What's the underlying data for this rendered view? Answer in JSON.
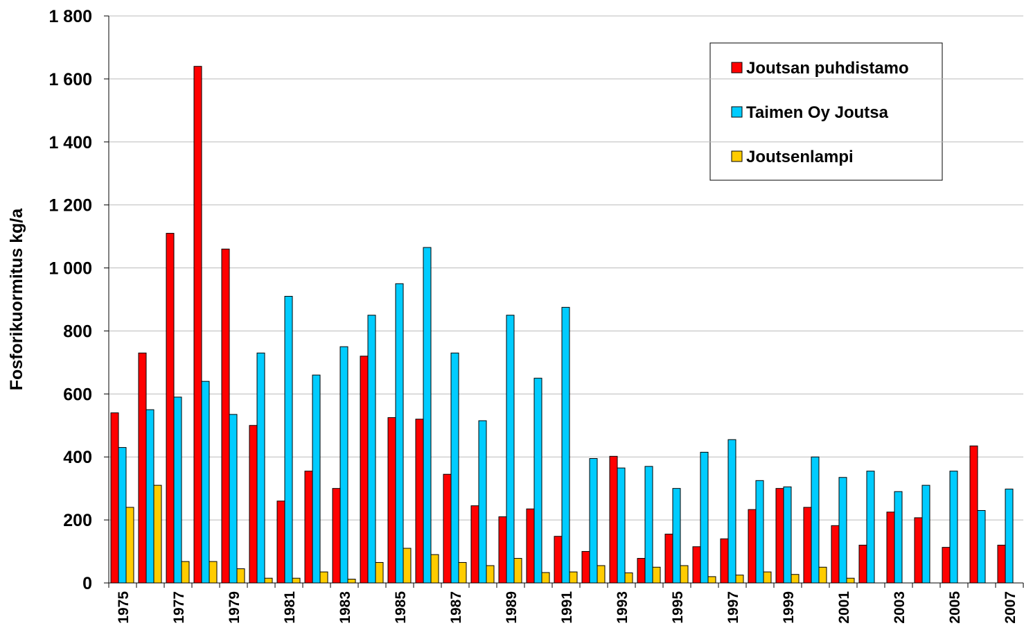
{
  "chart_data": {
    "type": "bar",
    "y_label": "Fosforikuormitus kg/a",
    "categories": [
      "1975",
      null,
      "1977",
      null,
      "1979",
      null,
      "1981",
      null,
      "1983",
      null,
      "1985",
      null,
      "1987",
      null,
      "1989",
      null,
      "1991",
      null,
      "1993",
      null,
      "1995",
      null,
      "1997",
      null,
      "1999",
      null,
      "2001",
      null,
      "2003",
      null,
      "2005",
      null,
      "2007"
    ],
    "series": [
      {
        "name": "Joutsan puhdistamo",
        "color": "#ff0000",
        "values": [
          540,
          730,
          1110,
          1640,
          1060,
          500,
          260,
          355,
          300,
          720,
          525,
          520,
          345,
          245,
          210,
          235,
          148,
          100,
          402,
          78,
          155,
          115,
          140,
          233,
          300,
          240,
          182,
          120,
          225,
          207,
          113,
          435,
          120
        ]
      },
      {
        "name": "Taimen Oy Joutsa",
        "color": "#00ccff",
        "values": [
          430,
          550,
          590,
          640,
          535,
          730,
          910,
          660,
          750,
          850,
          950,
          1065,
          730,
          515,
          850,
          650,
          875,
          395,
          365,
          370,
          300,
          415,
          455,
          325,
          305,
          400,
          335,
          355,
          290,
          310,
          355,
          230,
          298
        ]
      },
      {
        "name": "Joutsenlampi",
        "color": "#ffcc00",
        "values": [
          240,
          310,
          68,
          68,
          45,
          15,
          15,
          35,
          12,
          65,
          110,
          90,
          65,
          55,
          78,
          33,
          35,
          55,
          32,
          50,
          55,
          20,
          25,
          35,
          27,
          50,
          15,
          null,
          null,
          null,
          null,
          null,
          null
        ]
      }
    ],
    "ylim": [
      0,
      1800
    ],
    "yticks": [
      0,
      200,
      400,
      600,
      800,
      {
        "value": 1000,
        "label": "1 000"
      },
      {
        "value": 1200,
        "label": "1 200"
      },
      {
        "value": 1400,
        "label": "1 400"
      },
      {
        "value": 1600,
        "label": "1 600"
      },
      {
        "value": 1800,
        "label": "1 800"
      }
    ],
    "grid": true,
    "legend": "upper right"
  }
}
